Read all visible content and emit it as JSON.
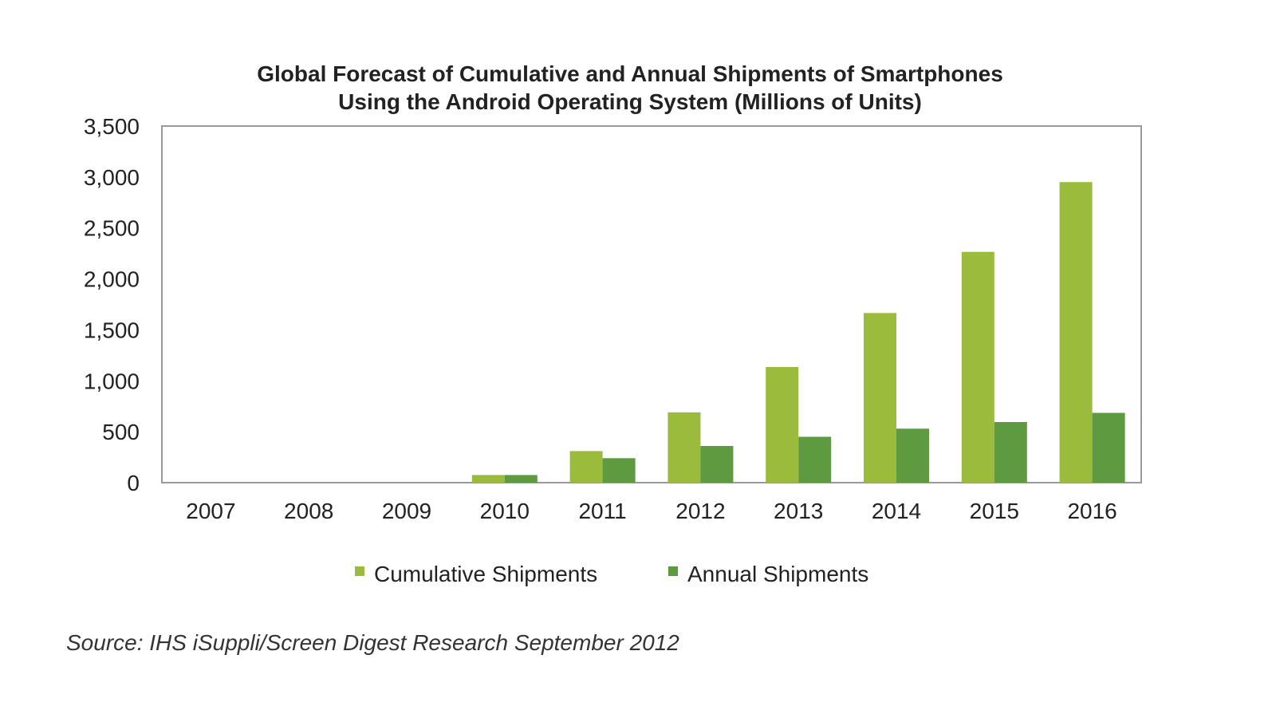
{
  "chart_data": {
    "type": "bar",
    "title_lines": [
      "Global Forecast of Cumulative and Annual Shipments of Smartphones",
      "Using the Android Operating System  (Millions of Units)"
    ],
    "categories": [
      "2007",
      "2008",
      "2009",
      "2010",
      "2011",
      "2012",
      "2013",
      "2014",
      "2015",
      "2016"
    ],
    "series": [
      {
        "name": "Cumulative Shipments",
        "color": "#9ABB3C",
        "values": [
          0,
          0,
          0,
          75,
          310,
          690,
          1135,
          1665,
          2265,
          2950
        ]
      },
      {
        "name": "Annual Shipments",
        "color": "#5E9A3F",
        "values": [
          0,
          0,
          0,
          75,
          240,
          360,
          450,
          530,
          595,
          685
        ]
      }
    ],
    "y_ticks": [
      "0",
      "500",
      "1,000",
      "1,500",
      "2,000",
      "2,500",
      "3,000",
      "3,500"
    ],
    "ylim": [
      0,
      3500
    ],
    "grid": false,
    "legend_position": "bottom",
    "source": "Source: IHS iSuppli/Screen Digest Research September 2012"
  }
}
